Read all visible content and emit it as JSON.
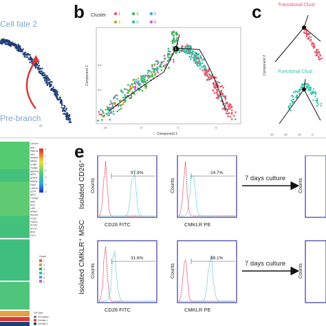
{
  "panel_letters": {
    "b": "b",
    "c": "c",
    "e": "e"
  },
  "panel_a": {
    "cell_fate_2": "Cell fate 2",
    "pre_branch": "Pre-branch",
    "tick_bottom": "-21",
    "colors": {
      "trajectory": "#1f3f73",
      "label": "#7fa6cc",
      "arrow": "#d63a3a"
    }
  },
  "panel_b": {
    "legend_title": "Cluster",
    "clusters": [
      {
        "id": "1",
        "color": "#e8566c"
      },
      {
        "id": "2",
        "color": "#c9a02a"
      },
      {
        "id": "3",
        "color": "#3bb05a"
      },
      {
        "id": "4",
        "color": "#2fbfa5"
      },
      {
        "id": "5",
        "color": "#4aa0e0"
      },
      {
        "id": "6",
        "color": "#d55ad0"
      }
    ],
    "xlabel": "Component 1",
    "ylabel": "Component 2",
    "y_ticks": [
      "2.5",
      "0.0",
      "-2.5"
    ],
    "x_ticks": [
      "-10",
      "-5",
      "0",
      "5"
    ],
    "branch_label": "1"
  },
  "panel_c": {
    "transitional": "Transitional Clust",
    "functional": "Functional Clust",
    "ylabel": "Component 2",
    "x_ticks": [
      "-20",
      "-15",
      "-10",
      "-5"
    ],
    "colors": {
      "transitional": "#e05a70",
      "functional": "#2fbfa5"
    }
  },
  "heatmap": {
    "title": "Cell line",
    "scale_ticks": [
      "3",
      "2",
      "1",
      "0",
      "-1",
      "-2",
      "-3"
    ],
    "genes": [
      "DKK",
      "PRKCB",
      "IGF2",
      "IGFBP4",
      "MIR04",
      "COMP",
      "TMSB4",
      "SERPIN",
      "NRP1",
      "SFRP4",
      "MATN4",
      "FAM3",
      "LGALS1",
      "CD74",
      "SPP1",
      "CTNNB",
      "GRP",
      "DCN",
      "LUM",
      "SPARC",
      "PDGFR",
      "VCAN",
      "TAGLN",
      "ACTA2",
      "HLA-A",
      "BGN",
      "THY1"
    ],
    "cluster_legend_title": "Cluster",
    "cluster_legend": [
      "1",
      "2",
      "3",
      "4",
      "5",
      "6"
    ],
    "cell_type_title": "Cell Type",
    "cell_types": [
      {
        "label": "Pre-branch",
        "color": "#888888"
      },
      {
        "label": "Cell fate 1",
        "color": "#d63a3a"
      },
      {
        "label": "Cell fate 2",
        "color": "#1f3f73"
      }
    ]
  },
  "panel_e": {
    "rows": [
      {
        "row_label": "Isolated CD26⁺ MSC",
        "plots": [
          {
            "pct": "97.9%",
            "xlabel": "CD26  FITC"
          },
          {
            "pct": "24.7%",
            "xlabel": "CMKLR  PE"
          }
        ],
        "arrow_label": "7 days culture"
      },
      {
        "row_label": "Isolated CMKLR⁺ MSC",
        "plots": [
          {
            "pct": "31.6%",
            "xlabel": "CD26  FITC"
          },
          {
            "pct": "88.1%",
            "xlabel": "CMKLR  PE"
          }
        ],
        "arrow_label": "7 days culture"
      }
    ],
    "ylabel": "Counts",
    "colors": {
      "control": "#e0405a",
      "sample": "#50c8d8",
      "frame": "#3a3aa0"
    }
  }
}
